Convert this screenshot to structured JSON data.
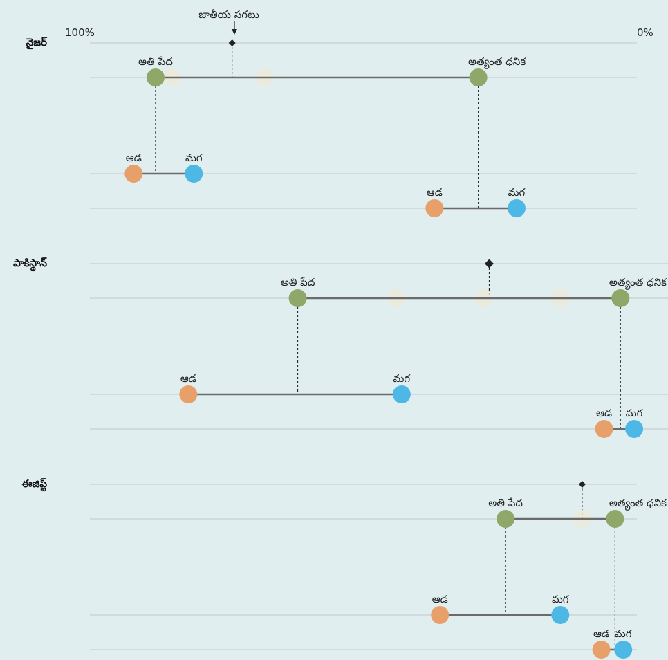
{
  "chart_data": {
    "type": "dot-plot",
    "axis": {
      "left_label": "100%",
      "right_label": "0%",
      "range": [
        100,
        0
      ]
    },
    "national_average_annotation": "జాతీయ సగటు",
    "colors": {
      "wealth": "#8fa86a",
      "female": "#e8a06a",
      "male": "#4db8e6",
      "connector": "#6b6b6b",
      "grid": "#c9cfcf",
      "marker": "#222222"
    },
    "countries": [
      {
        "name": "నైజర్",
        "national_average": 74,
        "poorest": {
          "label": "అతి పేద",
          "value": 88
        },
        "richest": {
          "label": "అత్యంత ధనిక",
          "value": 29
        },
        "poorest_gender": {
          "female_label": "ఆడ",
          "female": 92,
          "male_label": "మగ",
          "male": 81
        },
        "richest_gender": {
          "female_label": "ఆడ",
          "female": 37,
          "male_label": "మగ",
          "male": 22
        },
        "other_quintiles": [
          85,
          68
        ]
      },
      {
        "name": "పాకిస్థాన్",
        "national_average": 27,
        "poorest": {
          "label": "అతి పేద",
          "value": 62
        },
        "richest": {
          "label": "అత్యంత ధనిక",
          "value": 3
        },
        "poorest_gender": {
          "female_label": "ఆడ",
          "female": 82,
          "male_label": "మగ",
          "male": 43
        },
        "richest_gender": {
          "female_label": "ఆడ",
          "female": 6,
          "male_label": "మగ",
          "male": 0.5
        },
        "other_quintiles": [
          44,
          28,
          14
        ]
      },
      {
        "name": "ఈజిప్ట్",
        "national_average": 10,
        "poorest": {
          "label": "అతి పేద",
          "value": 24
        },
        "richest": {
          "label": "అత్యంత ధనిక",
          "value": 4
        },
        "poorest_gender": {
          "female_label": "ఆడ",
          "female": 36,
          "male_label": "మగ",
          "male": 14
        },
        "richest_gender": {
          "female_label": "ఆడ",
          "female": 6.5,
          "male_label": "మగ",
          "male": 2.5
        },
        "other_quintiles": [
          10
        ]
      }
    ]
  }
}
